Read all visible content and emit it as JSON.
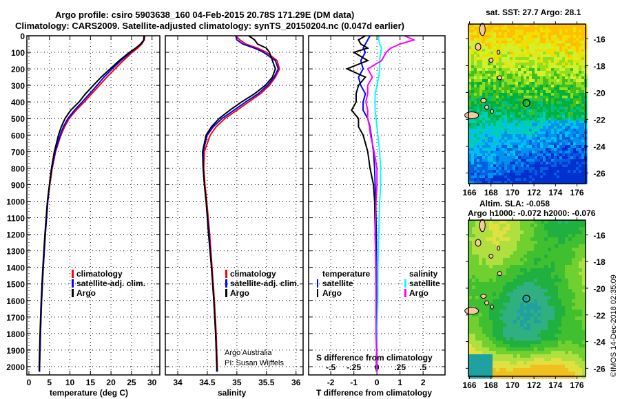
{
  "title_line1": "Argo profile: csiro 5903638_160 04-Feb-2015 20.78S 171.29E (DM data)",
  "title_line2": "Climatology: CARS2009. Satellite-adjusted climatology: synTS_20150204.nc (0.047d earlier)",
  "credit_line1": "Argo Australia",
  "credit_line2": "PI: Susan Wijffels",
  "footer_stamp": "©IMOS 14-Dec-2018 02:35:09",
  "colors": {
    "climatology": "#ff0000",
    "satellite": "#0000ff",
    "argo": "#000000",
    "s_satellite": "#00ffff",
    "s_argo": "#ff00ff",
    "land": "#f5c8a0"
  },
  "chart_data": [
    {
      "type": "line",
      "title": "",
      "xlabel": "temperature (deg C)",
      "ylabel": "",
      "xlim": [
        -0.5,
        31.9
      ],
      "ylim": [
        2050,
        0
      ],
      "xticks": [
        0,
        5,
        10,
        15,
        20,
        25,
        30
      ],
      "yticks": [
        0,
        100,
        200,
        300,
        400,
        500,
        600,
        700,
        800,
        900,
        1000,
        1100,
        1200,
        1300,
        1400,
        1500,
        1600,
        1700,
        1800,
        1900,
        2000
      ],
      "grid": true,
      "depth": [
        0,
        25,
        50,
        75,
        100,
        150,
        200,
        250,
        300,
        350,
        400,
        450,
        500,
        550,
        600,
        700,
        800,
        900,
        1000,
        1200,
        1400,
        1600,
        1800,
        2000,
        2030
      ],
      "series": [
        {
          "name": "climatology",
          "color": "#ff0000",
          "values": [
            28.2,
            28.1,
            27.5,
            26.5,
            25.2,
            23,
            21,
            19,
            17.2,
            15.3,
            13.5,
            11.5,
            9.8,
            8.7,
            7.8,
            6.5,
            5.7,
            5.1,
            4.6,
            4.0,
            3.5,
            3.1,
            2.8,
            2.6,
            2.6
          ]
        },
        {
          "name": "satellite-adj. clim.",
          "color": "#0000ff",
          "values": [
            28.0,
            28.0,
            27.3,
            26,
            24.8,
            22.4,
            20.3,
            18.3,
            16.6,
            14.8,
            13,
            11.1,
            9.5,
            8.4,
            7.6,
            6.4,
            5.6,
            5.0,
            4.6,
            4.0,
            3.5,
            3.1,
            2.8,
            2.6,
            2.6
          ]
        },
        {
          "name": "Argo",
          "color": "#000000",
          "values": [
            28.1,
            28.0,
            27.2,
            26,
            24.5,
            22,
            19.8,
            17.6,
            15.7,
            13.8,
            12.2,
            10.2,
            8.8,
            7.9,
            7.2,
            6.2,
            5.5,
            5.0,
            4.5,
            3.9,
            3.4,
            3.0,
            2.7,
            2.5,
            2.5
          ]
        }
      ],
      "legend": "bottom-right"
    },
    {
      "type": "line",
      "xlabel": "salinity",
      "xlim": [
        33.79,
        36.12
      ],
      "ylim": [
        2050,
        0
      ],
      "xticks": [
        34,
        34.5,
        35,
        35.5,
        36
      ],
      "grid": true,
      "depth": [
        0,
        25,
        50,
        75,
        100,
        150,
        200,
        250,
        300,
        350,
        400,
        450,
        500,
        550,
        600,
        700,
        800,
        900,
        1000,
        1200,
        1400,
        1600,
        1800,
        2000,
        2030
      ],
      "series": [
        {
          "name": "climatology",
          "color": "#ff0000",
          "values": [
            34.98,
            35.05,
            35.15,
            35.35,
            35.5,
            35.68,
            35.72,
            35.65,
            35.55,
            35.4,
            35.2,
            35.0,
            34.8,
            34.65,
            34.55,
            34.45,
            34.44,
            34.46,
            34.49,
            34.54,
            34.58,
            34.62,
            34.65,
            34.67,
            34.67
          ]
        },
        {
          "name": "satellite-adj. clim.",
          "color": "#0000ff",
          "values": [
            34.98,
            35.0,
            35.1,
            35.3,
            35.45,
            35.65,
            35.7,
            35.63,
            35.52,
            35.36,
            35.15,
            34.95,
            34.75,
            34.6,
            34.5,
            34.43,
            34.43,
            34.45,
            34.48,
            34.53,
            34.57,
            34.61,
            34.64,
            34.66,
            34.67
          ]
        },
        {
          "name": "Argo",
          "color": "#000000",
          "values": [
            35.2,
            35.3,
            35.35,
            35.5,
            35.55,
            35.6,
            35.65,
            35.6,
            35.48,
            35.3,
            35.08,
            34.88,
            34.7,
            34.57,
            34.48,
            34.42,
            34.43,
            34.45,
            34.48,
            34.52,
            34.57,
            34.61,
            34.64,
            34.66,
            34.66
          ]
        }
      ],
      "legend": "bottom-right"
    },
    {
      "type": "line",
      "xlabel": "T difference from climatology",
      "x2label": "S difference from climatology",
      "xlim": [
        -2.96,
        2.95
      ],
      "ylim": [
        2050,
        0
      ],
      "xticks": [
        -2,
        -1,
        0,
        1,
        2
      ],
      "x2ticks": [
        -0.5,
        -0.25,
        0,
        0.25,
        0.5
      ],
      "grid": true,
      "depth": [
        0,
        25,
        50,
        75,
        100,
        150,
        200,
        250,
        300,
        350,
        400,
        450,
        500,
        550,
        600,
        700,
        800,
        900,
        1000,
        1200,
        1400,
        1600,
        1800,
        2000,
        2030
      ],
      "legend_headers": [
        "temperature",
        "salinity"
      ],
      "series": [
        {
          "name": "satellite",
          "group": "temperature",
          "color": "#0000ff",
          "values": [
            -0.3,
            -0.4,
            -0.5,
            -0.6,
            -0.5,
            -0.7,
            -0.6,
            -0.8,
            -0.7,
            -0.5,
            -0.6,
            -0.6,
            -0.4,
            -0.3,
            -0.25,
            -0.15,
            -0.1,
            -0.08,
            -0.05,
            -0.03,
            -0.02,
            -0.01,
            0,
            0,
            0
          ]
        },
        {
          "name": "Argo",
          "group": "temperature",
          "color": "#000000",
          "values": [
            -0.5,
            -0.8,
            -0.7,
            -0.4,
            -1.0,
            -0.4,
            -1.3,
            -0.5,
            -0.8,
            -0.9,
            -0.9,
            -1.1,
            -0.8,
            -0.8,
            -0.6,
            -0.4,
            -0.3,
            -0.15,
            -0.1,
            -0.07,
            -0.05,
            -0.03,
            -0.02,
            -0.02,
            -0.02
          ]
        },
        {
          "name": "satellite",
          "group": "salinity",
          "color": "#00ffff",
          "values": [
            0.02,
            0.02,
            0.03,
            0.05,
            0.04,
            0.03,
            0.03,
            0.02,
            0.0,
            -0.02,
            -0.02,
            -0.02,
            -0.01,
            0,
            0.01,
            0.03,
            0.04,
            0.04,
            0.03,
            0.02,
            0.01,
            0.01,
            0.0,
            0,
            0
          ]
        },
        {
          "name": "Argo",
          "group": "salinity",
          "color": "#ff00ff",
          "values": [
            0.3,
            0.4,
            0.25,
            0.15,
            0.1,
            0.05,
            -0.1,
            -0.05,
            -0.1,
            -0.1,
            -0.12,
            -0.1,
            -0.1,
            -0.08,
            -0.07,
            -0.03,
            0,
            0,
            -0.01,
            -0.02,
            -0.01,
            -0.01,
            -0.01,
            0,
            0
          ]
        }
      ]
    },
    {
      "type": "heatmap",
      "title": "sat. SST: 27.7 Argo: 28.1",
      "xlim": [
        165.9,
        176.8
      ],
      "ylim": [
        -26.8,
        -14.9
      ],
      "xticks": [
        166,
        168,
        170,
        172,
        174,
        176
      ],
      "xtick_labels": [
        "166",
        "168",
        "170",
        "172",
        "174",
        "176"
      ],
      "yticks": [
        -16,
        -18,
        -20,
        -22,
        -24,
        -26
      ],
      "argo_position": [
        171.29,
        -20.78
      ]
    },
    {
      "type": "heatmap",
      "title": "Altim. SLA: -0.058",
      "subtitle": "Argo h1000: -0.072 h2000: -0.076",
      "xlim": [
        165.9,
        176.8
      ],
      "ylim": [
        -26.6,
        -14.9
      ],
      "xticks": [
        166,
        168,
        170,
        172,
        174,
        176
      ],
      "xtick_labels": [
        "166",
        "168",
        "170",
        "172",
        "174",
        "176"
      ],
      "yticks": [
        -16,
        -18,
        -20,
        -22,
        -24,
        -26
      ],
      "argo_position": [
        171.29,
        -20.78
      ]
    }
  ]
}
